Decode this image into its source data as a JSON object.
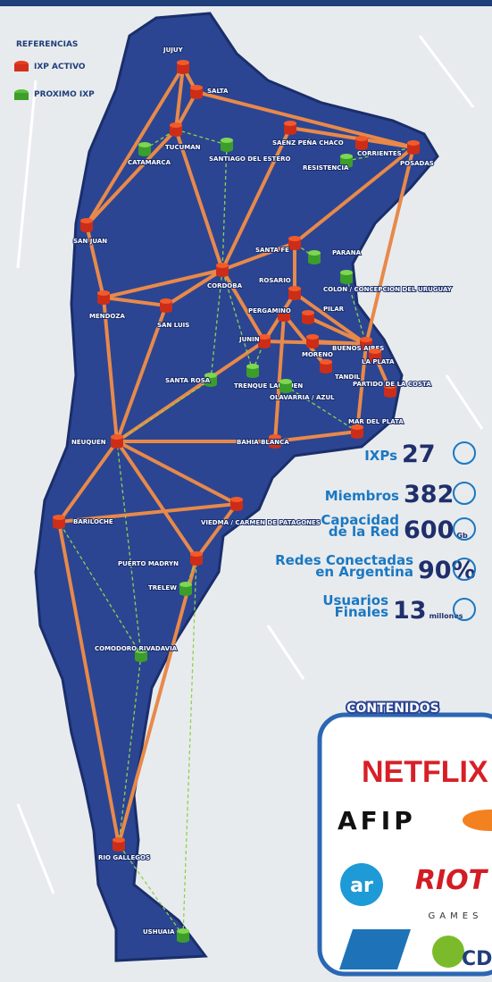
{
  "legend": {
    "title": "REFERENCIAS",
    "active": "IXP ACTIVO",
    "upcoming": "PROXIMO IXP"
  },
  "active_ixps": [
    "JUJUY",
    "SALTA",
    "TUCUMAN",
    "SAENZ PEÑA CHACO",
    "CORRIENTES",
    "POSADAS",
    "SAN JUAN",
    "MENDOZA",
    "CORDOBA",
    "SANTA FE",
    "ROSARIO",
    "SAN LUIS",
    "PERGAMINO",
    "PILAR",
    "JUNIN",
    "MORENO",
    "BUENOS AIRES",
    "LA PLATA",
    "PARTIDO DE LA COSTA",
    "TANDIL",
    "MAR DEL PLATA",
    "BAHIA BLANCA",
    "NEUQUEN",
    "VIEDMA / CARMEN DE PATAGONES",
    "BARILOCHE",
    "PUERTO MADRYN",
    "RIO GALLEGOS"
  ],
  "upcoming_ixps": [
    "CATAMARCA",
    "SANTIAGO DEL ESTERO",
    "RESISTENCIA",
    "PARANA",
    "COLON / CONCEPCION DEL URUGUAY",
    "SANTA ROSA",
    "TRENQUE LAUQUEN",
    "OLAVARRIA / AZUL",
    "TRELEW",
    "COMODORO RIVADAVIA",
    "USHUAIA"
  ],
  "stats": [
    {
      "label": [
        "IXPs"
      ],
      "value": 27
    },
    {
      "label": [
        "Miembros"
      ],
      "value": 382
    },
    {
      "label": [
        "Capacidad",
        "de la Red"
      ],
      "value": 600,
      "unit": "Gb"
    },
    {
      "label": [
        "Redes Conectadas",
        "en Argentina"
      ],
      "value": "90%"
    },
    {
      "label": [
        "Usuarios",
        "Finales"
      ],
      "value": 13,
      "unit": "millones"
    }
  ],
  "contents": {
    "title": "CONTENIDOS",
    "logos": [
      "NETFLIX",
      "AFIP",
      "ar",
      "RIOT",
      "GAMES",
      "CD"
    ]
  }
}
